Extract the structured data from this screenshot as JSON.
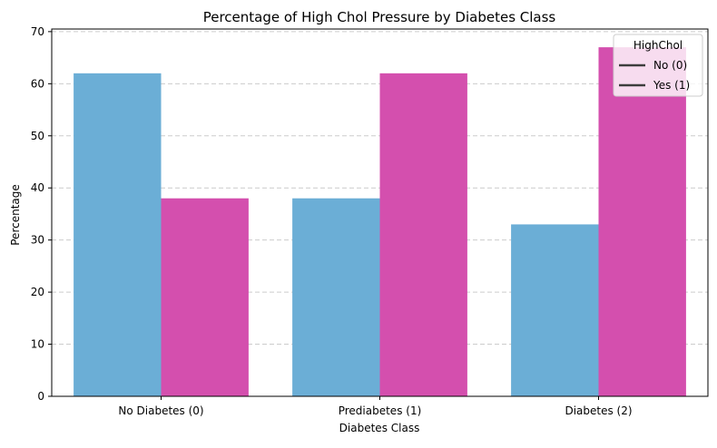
{
  "chart_data": {
    "type": "bar",
    "title": "Percentage of High Chol Pressure by Diabetes Class",
    "xlabel": "Diabetes Class",
    "ylabel": "Percentage",
    "categories": [
      "No Diabetes (0)",
      "Prediabetes (1)",
      "Diabetes (2)"
    ],
    "series": [
      {
        "name": "No (0)",
        "values": [
          62,
          38,
          33
        ],
        "color": "#6baed6"
      },
      {
        "name": "Yes (1)",
        "values": [
          38,
          62,
          67
        ],
        "color": "#d44fae"
      }
    ],
    "ylim": [
      0,
      70.5
    ],
    "yticks": [
      0,
      10,
      20,
      30,
      40,
      50,
      60,
      70
    ],
    "grid": "horizontal dashed",
    "legend": {
      "title": "HighChol",
      "placement": "top-right",
      "entries": [
        "No (0)",
        "Yes (1)"
      ],
      "swatch_color": "#3d3d3d"
    }
  }
}
